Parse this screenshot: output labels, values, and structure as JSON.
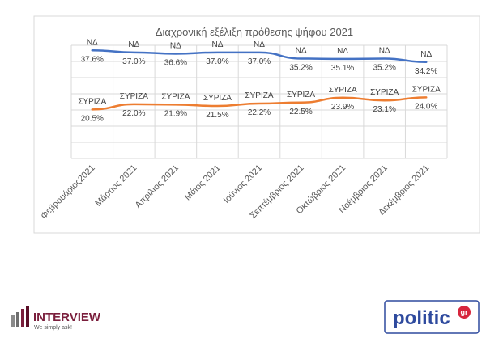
{
  "chart_data": {
    "type": "line",
    "title": "Διαχρονική εξέλιξη πρόθεσης ψήφου 2021",
    "categories": [
      "Φεβρουάριος2021",
      "Μάρτιος 2021",
      "Απρίλιος 2021",
      "Μάιος 2021",
      "Ιούνιος 2021",
      "Σεπτέμβριος 2021",
      "Οκτώβριος 2021",
      "Νοέμβριος 2021",
      "Δεκέμβριος 2021"
    ],
    "series": [
      {
        "name": "ΝΔ",
        "color": "#4472C4",
        "values": [
          37.6,
          37.0,
          36.6,
          37.0,
          37.0,
          35.2,
          35.1,
          35.2,
          34.2
        ],
        "labels": [
          "37.6%",
          "37.0%",
          "36.6%",
          "37.0%",
          "37.0%",
          "35.2%",
          "35.1%",
          "35.2%",
          "34.2%"
        ]
      },
      {
        "name": "ΣΥΡΙΖΑ",
        "color": "#ED7D31",
        "values": [
          20.5,
          22.0,
          21.9,
          21.5,
          22.2,
          22.5,
          23.9,
          23.1,
          24.0
        ],
        "labels": [
          "20.5%",
          "22.0%",
          "21.9%",
          "21.5%",
          "22.2%",
          "22.5%",
          "23.9%",
          "23.1%",
          "24.0%"
        ]
      }
    ],
    "ylim": [
      0,
      40
    ],
    "grid": true,
    "legend": "none"
  },
  "logos": {
    "interview": {
      "name": "INTERVIEW",
      "tagline": "We simply ask!",
      "accent": "#7a1e3c"
    },
    "politic": {
      "name": "politic",
      "suffix": "gr",
      "color": "#2e4a9e"
    }
  }
}
